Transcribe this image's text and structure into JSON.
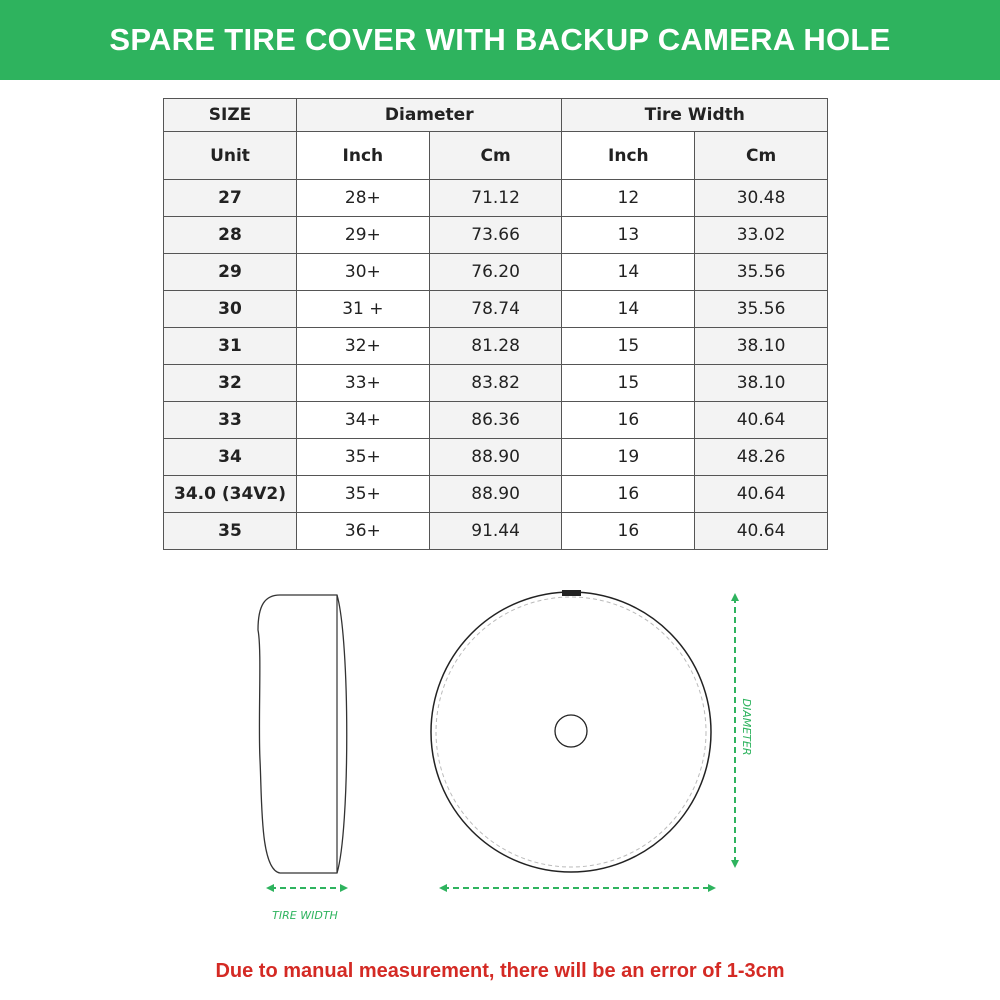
{
  "title": "SPARE TIRE COVER WITH BACKUP CAMERA HOLE",
  "table": {
    "group_headers": [
      "SIZE",
      "Diameter",
      "Tire Width"
    ],
    "sub_headers": [
      "Unit",
      "Inch",
      "Cm",
      "Inch",
      "Cm"
    ],
    "rows": [
      [
        "27",
        "28+",
        "71.12",
        "12",
        "30.48"
      ],
      [
        "28",
        "29+",
        "73.66",
        "13",
        "33.02"
      ],
      [
        "29",
        "30+",
        "76.20",
        "14",
        "35.56"
      ],
      [
        "30",
        "31 +",
        "78.74",
        "14",
        "35.56"
      ],
      [
        "31",
        "32+",
        "81.28",
        "15",
        "38.10"
      ],
      [
        "32",
        "33+",
        "83.82",
        "15",
        "38.10"
      ],
      [
        "33",
        "34+",
        "86.36",
        "16",
        "40.64"
      ],
      [
        "34",
        "35+",
        "88.90",
        "19",
        "48.26"
      ],
      [
        "34.0 (34V2)",
        "35+",
        "88.90",
        "16",
        "40.64"
      ],
      [
        "35",
        "36+",
        "91.44",
        "16",
        "40.64"
      ]
    ]
  },
  "diagram": {
    "tire_width_label": "TIRE WIDTH",
    "diameter_label": "DIAMETER"
  },
  "note": "Due to manual measurement, there will be an error of 1-3cm",
  "colors": {
    "brand_green": "#2eb35e",
    "note_red": "#d42a24"
  }
}
